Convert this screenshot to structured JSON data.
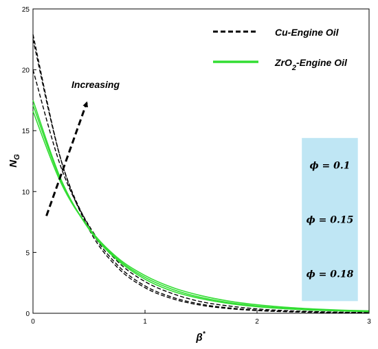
{
  "chart_data": {
    "type": "line",
    "title": "",
    "xlabel": "β*",
    "ylabel": "N_G",
    "xlim": [
      0,
      3
    ],
    "ylim": [
      0,
      25
    ],
    "xticks": [
      "0",
      "1",
      "2",
      "3"
    ],
    "yticks": [
      "0",
      "5",
      "10",
      "15",
      "20",
      "25"
    ],
    "grid": false,
    "legend": {
      "placement": "top-right",
      "entries": [
        {
          "label": "Cu-Engine Oil",
          "style": "dashed",
          "color": "#000000"
        },
        {
          "label_main": "ZrO",
          "label_sub": "2",
          "label_rest": "-Engine Oil",
          "style": "solid",
          "color": "#33dd33"
        }
      ]
    },
    "annotation": {
      "text": "Increasing",
      "arrow_from": {
        "x": 0.12,
        "y": 8
      },
      "arrow_to": {
        "x": 0.48,
        "y": 17.3
      }
    },
    "phi_box": {
      "color": "#bfe6f4",
      "items": [
        "ϕ = 0.1",
        "ϕ = 0.15",
        "ϕ = 0.18"
      ],
      "x_range": [
        2.4,
        2.9
      ],
      "y_range": [
        1,
        14.4
      ]
    },
    "series": [
      {
        "group": "Cu-Engine Oil",
        "phi": "0.1",
        "x": [
          0,
          0.25,
          0.5,
          0.75,
          1.0,
          1.25,
          1.5,
          1.75,
          2.0,
          2.25,
          2.5,
          2.75,
          3.0
        ],
        "y": [
          20.0,
          12.0,
          7.2,
          4.3,
          2.6,
          1.6,
          0.95,
          0.6,
          0.36,
          0.22,
          0.14,
          0.09,
          0.06
        ]
      },
      {
        "group": "Cu-Engine Oil",
        "phi": "0.15",
        "x": [
          0,
          0.25,
          0.5,
          0.75,
          1.0,
          1.25,
          1.5,
          1.75,
          2.0,
          2.25,
          2.5,
          2.75,
          3.0
        ],
        "y": [
          22.5,
          12.6,
          7.1,
          4.0,
          2.25,
          1.3,
          0.75,
          0.44,
          0.26,
          0.16,
          0.1,
          0.07,
          0.05
        ]
      },
      {
        "group": "Cu-Engine Oil",
        "phi": "0.18",
        "x": [
          0,
          0.25,
          0.5,
          0.75,
          1.0,
          1.25,
          1.5,
          1.75,
          2.0,
          2.25,
          2.5,
          2.75,
          3.0
        ],
        "y": [
          22.9,
          12.6,
          6.9,
          3.8,
          2.1,
          1.18,
          0.66,
          0.38,
          0.22,
          0.13,
          0.08,
          0.05,
          0.04
        ]
      },
      {
        "group": "ZrO2-Engine Oil",
        "phi": "0.1",
        "x": [
          0,
          0.25,
          0.5,
          0.75,
          1.0,
          1.25,
          1.5,
          1.75,
          2.0,
          2.25,
          2.5,
          2.75,
          3.0
        ],
        "y": [
          16.6,
          10.7,
          7.0,
          4.6,
          3.1,
          2.1,
          1.45,
          1.0,
          0.7,
          0.5,
          0.36,
          0.26,
          0.2
        ]
      },
      {
        "group": "ZrO2-Engine Oil",
        "phi": "0.15",
        "x": [
          0,
          0.25,
          0.5,
          0.75,
          1.0,
          1.25,
          1.5,
          1.75,
          2.0,
          2.25,
          2.5,
          2.75,
          3.0
        ],
        "y": [
          17.1,
          10.9,
          7.0,
          4.5,
          2.95,
          1.95,
          1.3,
          0.88,
          0.6,
          0.42,
          0.3,
          0.22,
          0.16
        ]
      },
      {
        "group": "ZrO2-Engine Oil",
        "phi": "0.18",
        "x": [
          0,
          0.25,
          0.5,
          0.75,
          1.0,
          1.25,
          1.5,
          1.75,
          2.0,
          2.25,
          2.5,
          2.75,
          3.0
        ],
        "y": [
          17.5,
          11.0,
          6.9,
          4.4,
          2.8,
          1.8,
          1.2,
          0.8,
          0.54,
          0.37,
          0.26,
          0.19,
          0.14
        ]
      }
    ]
  }
}
